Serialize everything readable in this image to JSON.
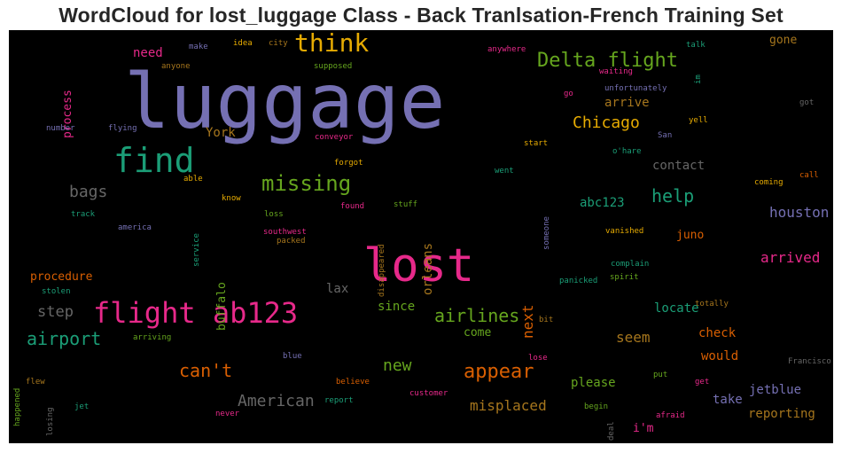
{
  "figure": {
    "title": "WordCloud for lost_luggage Class - Back Tranlsation-French Training Set",
    "background": "#000000"
  },
  "words": [
    {
      "text": "luggage",
      "color": "#7570b3"
    },
    {
      "text": "lost",
      "color": "#e7298a"
    },
    {
      "text": "find",
      "color": "#1b9e77"
    },
    {
      "text": "flight ab123",
      "color": "#e7298a"
    },
    {
      "text": "think",
      "color": "#e6ab02"
    },
    {
      "text": "Delta flight",
      "color": "#66a61e"
    },
    {
      "text": "missing",
      "color": "#66a61e"
    },
    {
      "text": "airlines",
      "color": "#66a61e"
    },
    {
      "text": "appear",
      "color": "#d95f02"
    },
    {
      "text": "airport",
      "color": "#1b9e77"
    },
    {
      "text": "help",
      "color": "#1b9e77"
    },
    {
      "text": "Chicago",
      "color": "#e6ab02"
    },
    {
      "text": "American",
      "color": "#666666"
    },
    {
      "text": "can't",
      "color": "#d95f02"
    },
    {
      "text": "bags",
      "color": "#666666"
    },
    {
      "text": "step",
      "color": "#666666"
    },
    {
      "text": "houston",
      "color": "#7570b3"
    },
    {
      "text": "arrived",
      "color": "#e7298a"
    },
    {
      "text": "new",
      "color": "#66a61e"
    },
    {
      "text": "misplaced",
      "color": "#a6761d"
    },
    {
      "text": "seem",
      "color": "#a6761d"
    },
    {
      "text": "next",
      "color": "#d95f02"
    },
    {
      "text": "orleans",
      "color": "#a6761d"
    },
    {
      "text": "process",
      "color": "#e7298a"
    },
    {
      "text": "buffalo",
      "color": "#66a61e"
    },
    {
      "text": "procedure",
      "color": "#d95f02"
    },
    {
      "text": "contact",
      "color": "#666666"
    },
    {
      "text": "abc123",
      "color": "#1b9e77"
    },
    {
      "text": "arrive",
      "color": "#a6761d"
    },
    {
      "text": "need",
      "color": "#e7298a"
    },
    {
      "text": "York",
      "color": "#a6761d"
    },
    {
      "text": "since",
      "color": "#66a61e"
    },
    {
      "text": "locate",
      "color": "#1b9e77"
    },
    {
      "text": "check",
      "color": "#d95f02"
    },
    {
      "text": "would",
      "color": "#d95f02"
    },
    {
      "text": "please",
      "color": "#66a61e"
    },
    {
      "text": "take",
      "color": "#7570b3"
    },
    {
      "text": "jetblue",
      "color": "#7570b3"
    },
    {
      "text": "reporting",
      "color": "#a6761d"
    },
    {
      "text": "juno",
      "color": "#d95f02"
    },
    {
      "text": "i'm",
      "color": "#e7298a"
    },
    {
      "text": "come",
      "color": "#66a61e"
    },
    {
      "text": "gone",
      "color": "#a6761d"
    },
    {
      "text": "lax",
      "color": "#666666"
    },
    {
      "text": "idea",
      "color": "#e6ab02"
    },
    {
      "text": "city",
      "color": "#a6761d"
    },
    {
      "text": "anywhere",
      "color": "#e7298a"
    },
    {
      "text": "talk",
      "color": "#1b9e77"
    },
    {
      "text": "make",
      "color": "#7570b3"
    },
    {
      "text": "anyone",
      "color": "#a6761d"
    },
    {
      "text": "supposed",
      "color": "#66a61e"
    },
    {
      "text": "waiting",
      "color": "#e7298a"
    },
    {
      "text": "im",
      "color": "#1b9e77"
    },
    {
      "text": "go",
      "color": "#e7298a"
    },
    {
      "text": "unfortunately",
      "color": "#7570b3"
    },
    {
      "text": "got",
      "color": "#666666"
    },
    {
      "text": "number",
      "color": "#7570b3"
    },
    {
      "text": "flying",
      "color": "#7570b3"
    },
    {
      "text": "conveyor",
      "color": "#e7298a"
    },
    {
      "text": "yell",
      "color": "#e6ab02"
    },
    {
      "text": "San",
      "color": "#7570b3"
    },
    {
      "text": "start",
      "color": "#e6ab02"
    },
    {
      "text": "forgot",
      "color": "#e6ab02"
    },
    {
      "text": "went",
      "color": "#1b9e77"
    },
    {
      "text": "o'hare",
      "color": "#1b9e77"
    },
    {
      "text": "call",
      "color": "#d95f02"
    },
    {
      "text": "able",
      "color": "#e6ab02"
    },
    {
      "text": "coming",
      "color": "#e6ab02"
    },
    {
      "text": "know",
      "color": "#e6ab02"
    },
    {
      "text": "found",
      "color": "#e7298a"
    },
    {
      "text": "stuff",
      "color": "#66a61e"
    },
    {
      "text": "someone",
      "color": "#7570b3"
    },
    {
      "text": "track",
      "color": "#1b9e77"
    },
    {
      "text": "service",
      "color": "#1b9e77"
    },
    {
      "text": "loss",
      "color": "#66a61e"
    },
    {
      "text": "disappeared",
      "color": "#a6761d"
    },
    {
      "text": "america",
      "color": "#7570b3"
    },
    {
      "text": "southwest",
      "color": "#e7298a"
    },
    {
      "text": "packed",
      "color": "#a6761d"
    },
    {
      "text": "vanished",
      "color": "#e6ab02"
    },
    {
      "text": "complain",
      "color": "#1b9e77"
    },
    {
      "text": "stolen",
      "color": "#1b9e77"
    },
    {
      "text": "panicked",
      "color": "#1b9e77"
    },
    {
      "text": "spirit",
      "color": "#66a61e"
    },
    {
      "text": "totally",
      "color": "#a6761d"
    },
    {
      "text": "bit",
      "color": "#a6761d"
    },
    {
      "text": "arriving",
      "color": "#66a61e"
    },
    {
      "text": "blue",
      "color": "#7570b3"
    },
    {
      "text": "lose",
      "color": "#e7298a"
    },
    {
      "text": "Francisco",
      "color": "#666666"
    },
    {
      "text": "happened",
      "color": "#66a61e"
    },
    {
      "text": "flew",
      "color": "#a6761d"
    },
    {
      "text": "losing",
      "color": "#666666"
    },
    {
      "text": "believe",
      "color": "#d95f02"
    },
    {
      "text": "customer",
      "color": "#e7298a"
    },
    {
      "text": "put",
      "color": "#66a61e"
    },
    {
      "text": "get",
      "color": "#e7298a"
    },
    {
      "text": "jet",
      "color": "#1b9e77"
    },
    {
      "text": "report",
      "color": "#1b9e77"
    },
    {
      "text": "begin",
      "color": "#66a61e"
    },
    {
      "text": "deal",
      "color": "#666666"
    },
    {
      "text": "afraid",
      "color": "#e7298a"
    },
    {
      "text": "never",
      "color": "#e7298a"
    }
  ]
}
